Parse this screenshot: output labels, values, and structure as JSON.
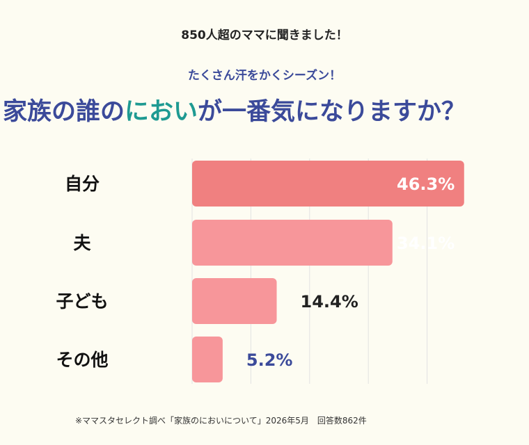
{
  "header": {
    "lead": "850人超のママに聞きました！",
    "sub": "たくさん汗をかくシーズン！",
    "title_pre": "家族の誰の",
    "title_highlight": "におい",
    "title_post": "が一番気になりますか？"
  },
  "colors": {
    "title": "#3B4A9A",
    "highlight": "#1E9A92",
    "bar_top": "#F08080",
    "bar": "#F7969A",
    "label_inside": "#FFFFFF",
    "label_outside": "#222222",
    "label_small": "#3B4A9A",
    "grid": "#E2E2E2"
  },
  "chart_data": {
    "type": "bar",
    "orientation": "horizontal",
    "categories": [
      "自分",
      "夫",
      "子ども",
      "その他"
    ],
    "values": [
      46.3,
      34.1,
      14.4,
      5.2
    ],
    "value_labels": [
      "46.3%",
      "34.1%",
      "14.4%",
      "5.2%"
    ],
    "title": "家族の誰のにおいが一番気になりますか？",
    "xlim": [
      0,
      50
    ],
    "grid": true
  },
  "footer": {
    "note": "※ママスタセレクト調べ「家族のにおいについて」2026年5月　回答数862件"
  }
}
